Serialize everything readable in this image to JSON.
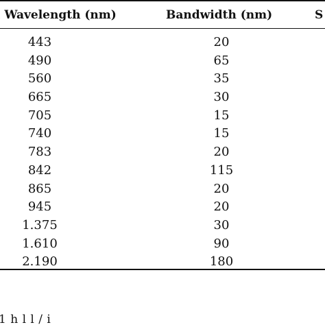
{
  "table": {
    "headers": {
      "wavelength": "l Wavelength (nm)",
      "bandwidth": "Bandwidth (nm)",
      "third": "S"
    },
    "rows": [
      {
        "wavelength": "443",
        "bandwidth": "20"
      },
      {
        "wavelength": "490",
        "bandwidth": "65"
      },
      {
        "wavelength": "560",
        "bandwidth": "35"
      },
      {
        "wavelength": "665",
        "bandwidth": "30"
      },
      {
        "wavelength": "705",
        "bandwidth": "15"
      },
      {
        "wavelength": "740",
        "bandwidth": "15"
      },
      {
        "wavelength": "783",
        "bandwidth": "20"
      },
      {
        "wavelength": "842",
        "bandwidth": "115"
      },
      {
        "wavelength": "865",
        "bandwidth": "20"
      },
      {
        "wavelength": "945",
        "bandwidth": "20"
      },
      {
        "wavelength": "1.375",
        "bandwidth": "30"
      },
      {
        "wavelength": "1.610",
        "bandwidth": "90"
      },
      {
        "wavelength": "2.190",
        "bandwidth": "180"
      }
    ]
  },
  "caption_fragment": "1           h                                   l       l    /   i"
}
